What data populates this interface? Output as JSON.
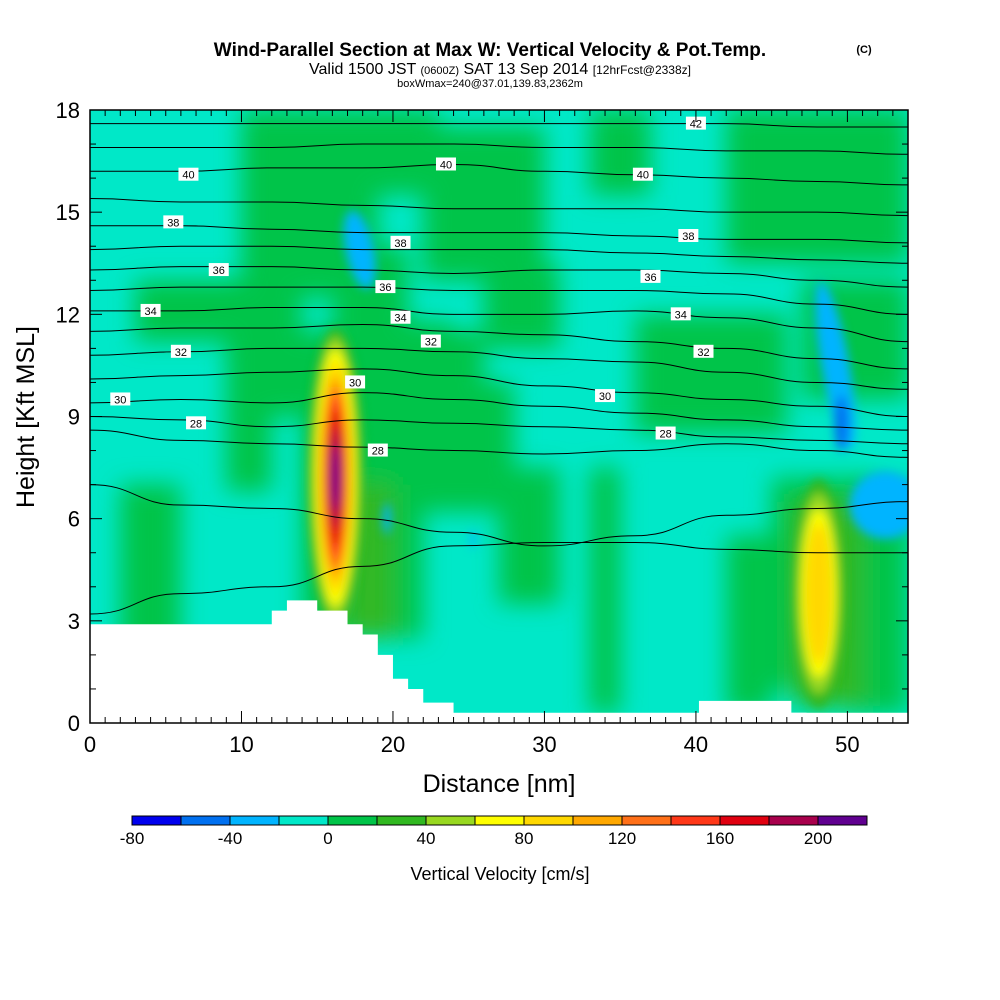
{
  "chart_data": {
    "type": "heatmap",
    "title": "Wind-Parallel Section at Max W: Vertical Velocity & Pot.Temp.",
    "title_mark": "(C)",
    "subtitle_pre": "Valid 1500 JST",
    "subtitle_utc": "(0600Z)",
    "subtitle_date": "SAT 13 Sep 2014",
    "subtitle_fcst": "[12hrFcst@2338z]",
    "subtitle2": "boxWmax=240@37.01,139.83,2362m",
    "xlabel": "Distance [nm]",
    "ylabel": "Height [Kft MSL]",
    "xlim": [
      0,
      54
    ],
    "ylim": [
      0,
      18
    ],
    "x_ticks": [
      0,
      10,
      20,
      30,
      40,
      50
    ],
    "y_ticks": [
      0,
      3,
      6,
      9,
      12,
      15,
      18
    ],
    "colorbar": {
      "label": "Vertical Velocity [cm/s]",
      "levels": [
        -80,
        -60,
        -40,
        -20,
        0,
        20,
        40,
        60,
        80,
        100,
        120,
        140,
        160,
        180,
        200,
        220
      ],
      "tick_labels": [
        -80,
        -40,
        0,
        40,
        80,
        120,
        160,
        200
      ],
      "colors": [
        "#0000ee",
        "#0070f0",
        "#00b4ff",
        "#00e8c8",
        "#00c448",
        "#30b820",
        "#98d820",
        "#ffff00",
        "#ffd800",
        "#ffa800",
        "#ff7018",
        "#ff3818",
        "#e00010",
        "#a8004c",
        "#600090"
      ]
    },
    "background_value": 0,
    "w_features": [
      {
        "name": "updraft-main",
        "x": 16.2,
        "z": 7.2,
        "max_w": 220
      },
      {
        "name": "updraft-east",
        "x": 48.1,
        "z": 3.8,
        "max_w": 100
      },
      {
        "name": "downdraft-upper-west",
        "x": 17.5,
        "z": 14.0,
        "min_w": -30
      },
      {
        "name": "downdraft-east",
        "x": 49.6,
        "z": 8.8,
        "min_w": -70
      },
      {
        "name": "downdraft-east-lower",
        "x": 52.0,
        "z": 5.8,
        "min_w": -30
      }
    ],
    "isentropes": [
      {
        "theta": 26,
        "z": [
          3.2,
          3.8,
          4.0,
          4.6,
          5.2,
          5.3,
          5.3,
          5.1,
          5.0,
          5.0
        ]
      },
      {
        "theta": 27,
        "z": [
          7.0,
          6.4,
          6.3,
          6.0,
          5.6,
          5.2,
          5.5,
          6.1,
          6.3,
          6.5
        ]
      },
      {
        "theta": 28,
        "z": [
          8.6,
          8.3,
          8.2,
          8.1,
          8.0,
          7.9,
          8.0,
          8.2,
          8.0,
          7.8
        ]
      },
      {
        "theta": 29,
        "z": [
          9.0,
          8.9,
          8.7,
          8.9,
          8.8,
          8.7,
          8.6,
          8.4,
          8.3,
          8.2
        ]
      },
      {
        "theta": 30,
        "z": [
          9.4,
          9.5,
          9.4,
          9.7,
          9.5,
          9.3,
          9.1,
          8.9,
          8.7,
          8.6
        ]
      },
      {
        "theta": 31,
        "z": [
          10.1,
          10.2,
          10.3,
          10.4,
          10.2,
          9.9,
          9.7,
          9.5,
          9.3,
          9.0
        ]
      },
      {
        "theta": 32,
        "z": [
          10.8,
          10.9,
          11.0,
          11.0,
          10.9,
          10.7,
          10.6,
          10.3,
          10.0,
          9.8
        ]
      },
      {
        "theta": 33,
        "z": [
          11.5,
          11.6,
          11.6,
          11.7,
          11.5,
          11.4,
          11.2,
          11.0,
          10.7,
          10.4
        ]
      },
      {
        "theta": 34,
        "z": [
          12.1,
          12.1,
          12.2,
          12.2,
          12.0,
          12.0,
          12.1,
          11.9,
          11.6,
          11.2
        ]
      },
      {
        "theta": 35,
        "z": [
          12.7,
          12.8,
          12.8,
          12.8,
          12.7,
          12.7,
          12.7,
          12.6,
          12.3,
          12.0
        ]
      },
      {
        "theta": 36,
        "z": [
          13.3,
          13.4,
          13.4,
          13.3,
          13.2,
          13.3,
          13.3,
          13.2,
          13.0,
          12.8
        ]
      },
      {
        "theta": 37,
        "z": [
          13.9,
          14.0,
          14.0,
          13.9,
          13.9,
          13.9,
          13.8,
          13.7,
          13.6,
          13.5
        ]
      },
      {
        "theta": 38,
        "z": [
          14.6,
          14.6,
          14.5,
          14.4,
          14.4,
          14.4,
          14.3,
          14.2,
          14.2,
          14.1
        ]
      },
      {
        "theta": 39,
        "z": [
          15.4,
          15.3,
          15.3,
          15.2,
          15.1,
          15.1,
          15.1,
          15.0,
          15.0,
          14.9
        ]
      },
      {
        "theta": 40,
        "z": [
          16.2,
          16.2,
          16.3,
          16.3,
          16.4,
          16.2,
          16.1,
          16.0,
          15.9,
          15.8
        ]
      },
      {
        "theta": 41,
        "z": [
          16.9,
          16.9,
          16.9,
          17.0,
          17.0,
          16.9,
          16.9,
          16.8,
          16.8,
          16.7
        ]
      },
      {
        "theta": 42,
        "z": [
          17.6,
          17.6,
          17.6,
          17.6,
          17.6,
          17.6,
          17.6,
          17.6,
          17.5,
          17.5
        ]
      }
    ],
    "isentrope_x": [
      0,
      6,
      12,
      18,
      24,
      30,
      36,
      42,
      48,
      54
    ],
    "isentrope_labels": [
      {
        "text": "28",
        "x": 7.0,
        "z": 8.8
      },
      {
        "text": "28",
        "x": 19.0,
        "z": 8.0
      },
      {
        "text": "28",
        "x": 38.0,
        "z": 8.5
      },
      {
        "text": "30",
        "x": 2.0,
        "z": 9.5
      },
      {
        "text": "30",
        "x": 17.5,
        "z": 10.0
      },
      {
        "text": "30",
        "x": 34.0,
        "z": 9.6
      },
      {
        "text": "32",
        "x": 6.0,
        "z": 10.9
      },
      {
        "text": "32",
        "x": 22.5,
        "z": 11.2
      },
      {
        "text": "32",
        "x": 40.5,
        "z": 10.9
      },
      {
        "text": "34",
        "x": 4.0,
        "z": 12.1
      },
      {
        "text": "34",
        "x": 20.5,
        "z": 11.9
      },
      {
        "text": "34",
        "x": 39.0,
        "z": 12.0
      },
      {
        "text": "36",
        "x": 8.5,
        "z": 13.3
      },
      {
        "text": "36",
        "x": 19.5,
        "z": 12.8
      },
      {
        "text": "36",
        "x": 37.0,
        "z": 13.1
      },
      {
        "text": "38",
        "x": 5.5,
        "z": 14.7
      },
      {
        "text": "38",
        "x": 20.5,
        "z": 14.1
      },
      {
        "text": "38",
        "x": 39.5,
        "z": 14.3
      },
      {
        "text": "40",
        "x": 6.5,
        "z": 16.1
      },
      {
        "text": "40",
        "x": 23.5,
        "z": 16.4
      },
      {
        "text": "40",
        "x": 36.5,
        "z": 16.1
      },
      {
        "text": "42",
        "x": 40.0,
        "z": 17.6
      }
    ],
    "terrain": {
      "x": [
        0,
        12,
        12,
        13,
        13,
        15,
        15,
        17,
        17,
        18,
        18,
        19,
        19,
        20,
        20,
        21,
        21,
        22,
        22,
        24,
        24,
        27,
        27,
        54
      ],
      "z": [
        2.9,
        2.9,
        3.3,
        3.3,
        3.6,
        3.6,
        3.3,
        3.3,
        2.9,
        2.9,
        2.6,
        2.6,
        2.0,
        2.0,
        1.3,
        1.3,
        1.0,
        1.0,
        0.6,
        0.6,
        0.3,
        0.3,
        0.3,
        0.3
      ],
      "east_x": [
        40.2,
        46.3,
        46.3,
        47.3
      ],
      "east_z": [
        0.65,
        0.65,
        0.3,
        0.3
      ]
    }
  }
}
